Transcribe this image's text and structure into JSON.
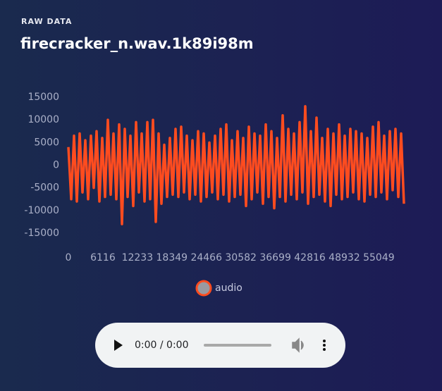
{
  "header": {
    "label": "RAW DATA",
    "title": "firecracker_n.wav.1k89i98m"
  },
  "chart_data": {
    "type": "line",
    "x": [
      0,
      500,
      1000,
      1500,
      2000,
      2500,
      3000,
      3500,
      4000,
      4500,
      5000,
      5500,
      6000,
      6500,
      7000,
      7500,
      8000,
      8500,
      9000,
      9500,
      10000,
      10500,
      11000,
      11500,
      12000,
      12500,
      13000,
      13500,
      14000,
      14500,
      15000,
      15500,
      16000,
      16500,
      17000,
      17500,
      18000,
      18500,
      19000,
      19500,
      20000,
      20500,
      21000,
      21500,
      22000,
      22500,
      23000,
      23500,
      24000,
      24500,
      25000,
      25500,
      26000,
      26500,
      27000,
      27500,
      28000,
      28500,
      29000,
      29500,
      30000,
      30500,
      31000,
      31500,
      32000,
      32500,
      33000,
      33500,
      34000,
      34500,
      35000,
      35500,
      36000,
      36500,
      37000,
      37500,
      38000,
      38500,
      39000,
      39500,
      40000,
      40500,
      41000,
      41500,
      42000,
      42500,
      43000,
      43500,
      44000,
      44500,
      45000,
      45500,
      46000,
      46500,
      47000,
      47500,
      48000,
      48500,
      49000,
      49500,
      50000,
      50500,
      51000,
      51500,
      52000,
      52500,
      53000,
      53500,
      54000,
      54500,
      55000,
      55500,
      56000,
      56500,
      57000,
      57500,
      58000,
      58500,
      59000,
      59500
    ],
    "series": [
      {
        "name": "audio",
        "color": "#ff4c1f",
        "values": [
          4000,
          -7500,
          6500,
          -8000,
          7000,
          -6000,
          5500,
          -7500,
          6500,
          -5000,
          7500,
          -8000,
          6000,
          -7000,
          10000,
          -6500,
          7000,
          -7500,
          9000,
          -13000,
          8000,
          -7000,
          6500,
          -9000,
          9500,
          -6000,
          7000,
          -8000,
          9500,
          -7500,
          10000,
          -12500,
          7000,
          -8500,
          4500,
          -7000,
          6000,
          -6500,
          8000,
          -7000,
          8500,
          -6000,
          6500,
          -7500,
          5500,
          -6500,
          7500,
          -8000,
          7000,
          -7000,
          5000,
          -6000,
          6500,
          -7500,
          8000,
          -6500,
          9000,
          -8000,
          5500,
          -7000,
          7500,
          -6500,
          6000,
          -9000,
          8500,
          -7500,
          7000,
          -6000,
          6500,
          -8500,
          9000,
          -7000,
          7500,
          -9500,
          6000,
          -7000,
          11000,
          -8000,
          8000,
          -6500,
          7000,
          -7500,
          9500,
          -6000,
          13000,
          -8500,
          7500,
          -7000,
          10500,
          -6500,
          6000,
          -8000,
          8000,
          -9000,
          7000,
          -6500,
          9000,
          -7500,
          6500,
          -7000,
          8000,
          -6000,
          7500,
          -7500,
          7000,
          -8000,
          6000,
          -6500,
          8500,
          -7000,
          9500,
          -6000,
          6500,
          -7500,
          7500,
          -5500,
          8000,
          -7000,
          7000,
          -8500
        ]
      }
    ],
    "xlim": [
      0,
      59500
    ],
    "xticks": [
      0,
      6116,
      12233,
      18349,
      24466,
      30582,
      36699,
      42816,
      48932,
      55049
    ],
    "ylim": [
      -15000,
      15000
    ],
    "yticks": [
      -15000,
      -10000,
      -5000,
      0,
      5000,
      10000,
      15000
    ]
  },
  "player": {
    "time": "0:00 / 0:00"
  }
}
